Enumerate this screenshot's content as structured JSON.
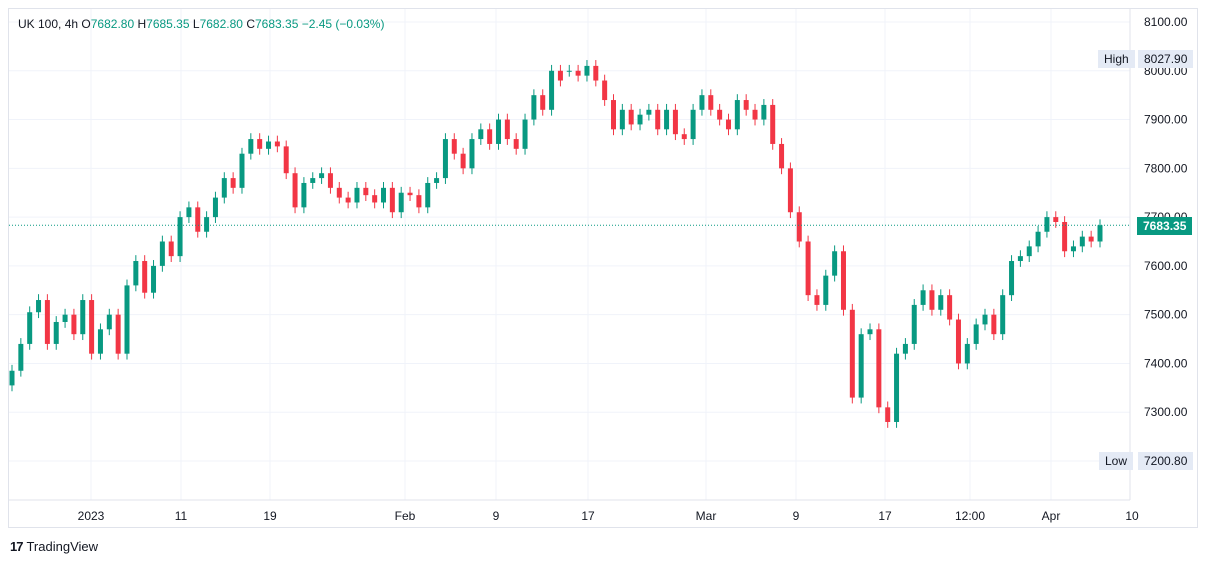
{
  "legend": {
    "symbol": "UK 100,",
    "interval": "4h",
    "open_k": "O",
    "open": "7682.80",
    "high_k": "H",
    "high": "7685.35",
    "low_k": "L",
    "low": "7682.80",
    "close_k": "C",
    "close": "7683.35",
    "change": "−2.45 (−0.03%)"
  },
  "markers": {
    "high_label": "High",
    "high_value": "8027.90",
    "low_label": "Low",
    "low_value": "7200.80",
    "last_price": "7683.35"
  },
  "brand": {
    "name": "TradingView"
  },
  "colors": {
    "up": "#089981",
    "down": "#f23645",
    "grid": "#f0f3fa",
    "text": "#131722"
  },
  "chart_data": {
    "type": "candlestick",
    "y_ticks": [
      "8100.00",
      "8000.00",
      "7900.00",
      "7800.00",
      "7700.00",
      "7600.00",
      "7500.00",
      "7400.00",
      "7300.00",
      "7200.00"
    ],
    "ylim": [
      7110,
      8130
    ],
    "x_ticks": [
      "2023",
      "11",
      "19",
      "Feb",
      "9",
      "17",
      "Mar",
      "9",
      "17",
      "12:00",
      "Apr",
      "10"
    ],
    "last_price": 7683.35,
    "series": [
      {
        "name": "",
        "points": [
          [
            7355,
            7385
          ],
          [
            7385,
            7440
          ],
          [
            7440,
            7505
          ],
          [
            7505,
            7530
          ],
          [
            7530,
            7440
          ],
          [
            7440,
            7485
          ],
          [
            7485,
            7500
          ],
          [
            7500,
            7460
          ],
          [
            7460,
            7530
          ],
          [
            7530,
            7420
          ],
          [
            7420,
            7470
          ],
          [
            7470,
            7500
          ],
          [
            7500,
            7420
          ],
          [
            7420,
            7560
          ],
          [
            7560,
            7610
          ],
          [
            7610,
            7545
          ],
          [
            7545,
            7600
          ],
          [
            7600,
            7650
          ],
          [
            7650,
            7620
          ],
          [
            7620,
            7700
          ],
          [
            7700,
            7720
          ],
          [
            7720,
            7670
          ],
          [
            7670,
            7700
          ],
          [
            7700,
            7740
          ],
          [
            7740,
            7780
          ],
          [
            7780,
            7760
          ],
          [
            7760,
            7830
          ],
          [
            7830,
            7860
          ],
          [
            7860,
            7840
          ],
          [
            7840,
            7855
          ],
          [
            7855,
            7845
          ],
          [
            7845,
            7790
          ],
          [
            7790,
            7720
          ],
          [
            7720,
            7770
          ],
          [
            7770,
            7780
          ],
          [
            7780,
            7790
          ],
          [
            7790,
            7760
          ],
          [
            7760,
            7740
          ],
          [
            7740,
            7730
          ],
          [
            7730,
            7760
          ],
          [
            7760,
            7745
          ],
          [
            7745,
            7730
          ],
          [
            7730,
            7760
          ],
          [
            7760,
            7710
          ],
          [
            7710,
            7750
          ],
          [
            7750,
            7745
          ],
          [
            7745,
            7720
          ],
          [
            7720,
            7770
          ],
          [
            7770,
            7780
          ],
          [
            7780,
            7860
          ],
          [
            7860,
            7830
          ],
          [
            7830,
            7800
          ],
          [
            7800,
            7860
          ],
          [
            7860,
            7880
          ],
          [
            7880,
            7850
          ],
          [
            7850,
            7900
          ],
          [
            7900,
            7860
          ],
          [
            7860,
            7840
          ],
          [
            7840,
            7900
          ],
          [
            7900,
            7950
          ],
          [
            7950,
            7920
          ],
          [
            7920,
            8000
          ],
          [
            8000,
            7980
          ],
          [
            8000,
            8000
          ],
          [
            8000,
            7990
          ],
          [
            7990,
            8010
          ],
          [
            8010,
            7980
          ],
          [
            7980,
            7940
          ],
          [
            7940,
            7880
          ],
          [
            7880,
            7920
          ],
          [
            7920,
            7890
          ],
          [
            7890,
            7910
          ],
          [
            7910,
            7920
          ],
          [
            7920,
            7880
          ],
          [
            7880,
            7920
          ],
          [
            7920,
            7870
          ],
          [
            7870,
            7860
          ],
          [
            7860,
            7920
          ],
          [
            7920,
            7950
          ],
          [
            7950,
            7920
          ],
          [
            7920,
            7900
          ],
          [
            7900,
            7880
          ],
          [
            7880,
            7940
          ],
          [
            7940,
            7920
          ],
          [
            7920,
            7900
          ],
          [
            7900,
            7930
          ],
          [
            7930,
            7850
          ],
          [
            7850,
            7800
          ],
          [
            7800,
            7710
          ],
          [
            7710,
            7650
          ],
          [
            7650,
            7540
          ],
          [
            7540,
            7520
          ],
          [
            7520,
            7580
          ],
          [
            7580,
            7630
          ],
          [
            7630,
            7510
          ],
          [
            7510,
            7330
          ],
          [
            7330,
            7460
          ],
          [
            7460,
            7470
          ],
          [
            7470,
            7310
          ],
          [
            7310,
            7280
          ],
          [
            7280,
            7420
          ],
          [
            7420,
            7440
          ],
          [
            7440,
            7520
          ],
          [
            7520,
            7550
          ],
          [
            7550,
            7510
          ],
          [
            7510,
            7540
          ],
          [
            7540,
            7490
          ],
          [
            7490,
            7400
          ],
          [
            7400,
            7440
          ],
          [
            7440,
            7480
          ],
          [
            7480,
            7500
          ],
          [
            7500,
            7460
          ],
          [
            7460,
            7540
          ],
          [
            7540,
            7610
          ],
          [
            7610,
            7620
          ],
          [
            7620,
            7640
          ],
          [
            7640,
            7670
          ],
          [
            7670,
            7700
          ],
          [
            7700,
            7690
          ],
          [
            7690,
            7630
          ],
          [
            7630,
            7640
          ],
          [
            7640,
            7660
          ],
          [
            7660,
            7650
          ],
          [
            7650,
            7683.35
          ]
        ]
      }
    ]
  }
}
